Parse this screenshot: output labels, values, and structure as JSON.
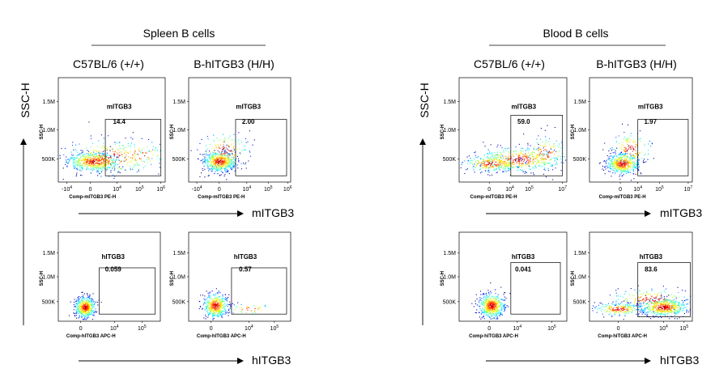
{
  "sections": [
    {
      "title": "Spleen B cells",
      "columns": [
        "C57BL/6 (+/+)",
        "B-hITGB3 (H/H)"
      ],
      "y_axis_label": "SSC-H",
      "row_axis_labels": [
        "mITGB3",
        "hITGB3"
      ]
    },
    {
      "title": "Blood B cells",
      "columns": [
        "C57BL/6 (+/+)",
        "B-hITGB3 (H/H)"
      ],
      "y_axis_label": "SSC-H",
      "row_axis_labels": [
        "mITGB3",
        "hITGB3"
      ]
    }
  ],
  "chart_data": [
    {
      "type": "scatter",
      "tissue": "Spleen B cells",
      "strain": "C57BL/6 (+/+)",
      "gate": "mITGB3",
      "gate_value": "14.4",
      "xlabel": "Comp-mITGB3 PE-H",
      "ylabel": "SSC-H",
      "xticks": [
        "-10^4",
        "0",
        "10^4",
        "10^5",
        "10^6"
      ],
      "yticks": [
        "500K",
        "1.0M",
        "1.5M"
      ],
      "xlim": [
        -3.5,
        6.3
      ],
      "ylim": [
        0,
        1900
      ],
      "gate_x": [
        1.2,
        6.0
      ],
      "gate_y": [
        80,
        1000
      ],
      "color_scale": "jet"
    },
    {
      "type": "scatter",
      "tissue": "Spleen B cells",
      "strain": "B-hITGB3 (H/H)",
      "gate": "mITGB3",
      "gate_value": "2.00",
      "xlabel": "Comp-mITGB3 PE-H",
      "ylabel": "SSC-H",
      "xticks": [
        "-10^4",
        "0",
        "10^4",
        "10^5",
        "10^6"
      ],
      "yticks": [
        "500K",
        "1.0M",
        "1.5M"
      ],
      "xlim": [
        -3.5,
        6.3
      ],
      "ylim": [
        0,
        1900
      ],
      "gate_x": [
        1.2,
        6.0
      ],
      "gate_y": [
        80,
        1000
      ],
      "color_scale": "jet"
    },
    {
      "type": "scatter",
      "tissue": "Spleen B cells",
      "strain": "C57BL/6 (+/+)",
      "gate": "hITGB3",
      "gate_value": "0.059",
      "xlabel": "Comp-hITGB3 APC-H",
      "ylabel": "SSC-H",
      "xticks": [
        "0",
        "10^4",
        "10^5"
      ],
      "yticks": [
        "500K",
        "1.0M",
        "1.5M"
      ],
      "xlim": [
        -1.5,
        5.6
      ],
      "ylim": [
        0,
        1900
      ],
      "gate_x": [
        1.0,
        5.4
      ],
      "gate_y": [
        80,
        1000
      ],
      "color_scale": "jet"
    },
    {
      "type": "scatter",
      "tissue": "Spleen B cells",
      "strain": "B-hITGB3 (H/H)",
      "gate": "hITGB3",
      "gate_value": "0.57",
      "xlabel": "Comp-hITGB3 APC-H",
      "ylabel": "SSC-H",
      "xticks": [
        "0",
        "10^4",
        "10^5"
      ],
      "yticks": [
        "500K",
        "1.0M",
        "1.5M"
      ],
      "xlim": [
        -1.5,
        5.6
      ],
      "ylim": [
        0,
        1900
      ],
      "gate_x": [
        1.0,
        5.4
      ],
      "gate_y": [
        80,
        1000
      ],
      "color_scale": "jet"
    },
    {
      "type": "scatter",
      "tissue": "Blood B cells",
      "strain": "C57BL/6 (+/+)",
      "gate": "mITGB3",
      "gate_value": "59.0",
      "xlabel": "Comp-mITGB3 PE-H",
      "ylabel": "SSC-H",
      "xticks": [
        "0",
        "10^4",
        "10^5",
        "10^7"
      ],
      "yticks": [
        "500K",
        "1.0M",
        "1.5M"
      ],
      "xlim": [
        -3.5,
        7.3
      ],
      "ylim": [
        0,
        1900
      ],
      "gate_x": [
        1.2,
        7.0
      ],
      "gate_y": [
        80,
        1000
      ],
      "color_scale": "jet"
    },
    {
      "type": "scatter",
      "tissue": "Blood B cells",
      "strain": "B-hITGB3 (H/H)",
      "gate": "mITGB3",
      "gate_value": "1.97",
      "xlabel": "Comp-mITGB3 PE-H",
      "ylabel": "SSC-H",
      "xticks": [
        "0",
        "10^4",
        "10^5",
        "10^7"
      ],
      "yticks": [
        "500K",
        "1.0M",
        "1.5M"
      ],
      "xlim": [
        -3.5,
        7.3
      ],
      "ylim": [
        0,
        1900
      ],
      "gate_x": [
        1.2,
        7.0
      ],
      "gate_y": [
        80,
        1000
      ],
      "color_scale": "jet"
    },
    {
      "type": "scatter",
      "tissue": "Blood B cells",
      "strain": "C57BL/6 (+/+)",
      "gate": "hITGB3",
      "gate_value": "0.041",
      "xlabel": "Comp-hITGB3 APC-H",
      "ylabel": "SSC-H",
      "xticks": [
        "0",
        "10^4",
        "10^5"
      ],
      "yticks": [
        "500K",
        "1.0M",
        "1.5M"
      ],
      "xlim": [
        -1.5,
        5.6
      ],
      "ylim": [
        0,
        1900
      ],
      "gate_x": [
        1.0,
        5.4
      ],
      "gate_y": [
        80,
        1000
      ],
      "color_scale": "jet"
    },
    {
      "type": "scatter",
      "tissue": "Blood B cells",
      "strain": "B-hITGB3 (H/H)",
      "gate": "hITGB3",
      "gate_value": "83.6",
      "xlabel": "Comp-hITGB3 APC-H",
      "ylabel": "SSC-H",
      "xticks": [
        "0",
        "10^4",
        "10^5"
      ],
      "yticks": [
        "500K",
        "1.0M",
        "1.5M"
      ],
      "xlim": [
        -1.5,
        5.6
      ],
      "ylim": [
        0,
        1900
      ],
      "gate_x": [
        1.0,
        5.4
      ],
      "gate_y": [
        80,
        1000
      ],
      "color_scale": "jet"
    }
  ]
}
